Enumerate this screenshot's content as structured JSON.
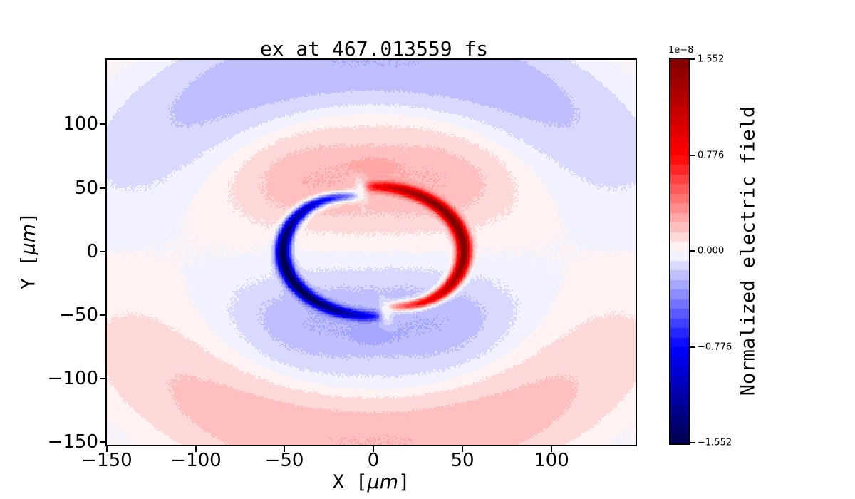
{
  "title": "ex at 467.013559 fs",
  "axes": {
    "xlabel_prefix": "X [",
    "xlabel_mu": "μm",
    "xlabel_suffix": "]",
    "ylabel_prefix": "Y [",
    "ylabel_mu": "μm",
    "ylabel_suffix": "]",
    "x_ticks": [
      "−150",
      "−100",
      "−50",
      "0",
      "50",
      "100"
    ],
    "y_ticks": [
      "100",
      "50",
      "0",
      "−50",
      "−100",
      "−150"
    ]
  },
  "colorbar": {
    "scale": "1e−8",
    "ticks": [
      "1.552",
      "0.776",
      "0.000",
      "−0.776",
      "−1.552"
    ],
    "label": "Normalized electric field"
  },
  "chart_data": {
    "type": "heatmap",
    "title": "ex at 467.013559 fs",
    "xlabel": "X [μm]",
    "ylabel": "Y [μm]",
    "x_range": [
      -150,
      147.5
    ],
    "y_range": [
      -152.3,
      150.8
    ],
    "x_tick_values": [
      -150,
      -100,
      -50,
      0,
      50,
      100
    ],
    "y_tick_values": [
      100,
      50,
      0,
      -50,
      -100,
      -150
    ],
    "colormap": "seismic",
    "num_levels": 40,
    "vmin": -1.552,
    "vmax": 1.552,
    "scale_factor": "1e-8",
    "colorbar_tick_values": [
      1.552,
      0.776,
      0.0,
      -0.776,
      -1.552
    ],
    "colorbar_label": "Normalized electric field",
    "field_model": {
      "description": "Snapshot of normalized Ex field of an expanding dipole-like wave: sharp ring of radius ~50 um with intense negative (blue) crescent on the left and positive (red) crescent on the right, gaps at top/bottom with inward-curled tips; broad sin(phi) lobes: positive (pink) above / negative (blue) below inside r<112 um, opposite-sign outer arcs peaking near r~150 um, small saturated blobs on the vertical axis at r~67 um, plus fine speckle noise near the center.",
      "ring": {
        "radius": 51,
        "sigma": 4.0,
        "amplitude": 1.552,
        "angle_offset_rad": 0.14,
        "cos_power": 0.55,
        "tip_curl_depth": 6,
        "tip_curl_width_rad": 0.45,
        "gap_white_strength": 0.88,
        "gap_white_width_rad": 0.07,
        "gap_white_center_radius": 49,
        "gap_white_radial_sigma": 10
      },
      "inner_lobe": {
        "amplitude": 0.21,
        "zero_radius": 112
      },
      "outer_lobe": {
        "amplitude": -0.232,
        "start_radius": 106,
        "rise_quarter": 88,
        "peak_radius": 150,
        "fall_quarter": 100,
        "end_radius": 200
      },
      "diagonal_lobes": {
        "amplitude": 0.09,
        "radius": 75,
        "radial_sigma": 30
      },
      "polar_blob": {
        "amplitude": 0.08,
        "radius": 67,
        "sigma": 9,
        "angular_power": 40
      },
      "noise": {
        "amplitude": 0.013,
        "center_radius": 55,
        "radial_sigma": 65,
        "base": 0.003
      }
    }
  }
}
